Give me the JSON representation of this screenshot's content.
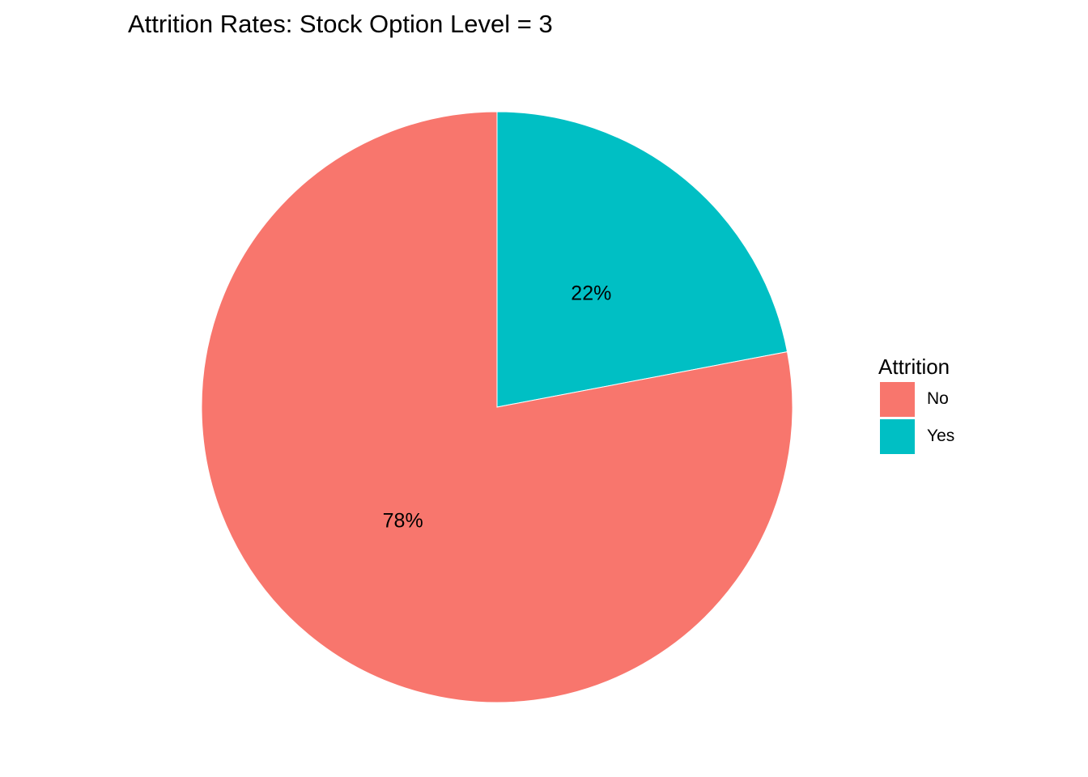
{
  "chart_data": {
    "type": "pie",
    "title": "Attrition Rates: Stock Option Level = 3",
    "legend_title": "Attrition",
    "legend_position": "right",
    "slices": [
      {
        "label": "No",
        "value": 78,
        "display": "78%",
        "color": "#F8766D"
      },
      {
        "label": "Yes",
        "value": 22,
        "display": "22%",
        "color": "#00BFC4"
      }
    ]
  }
}
